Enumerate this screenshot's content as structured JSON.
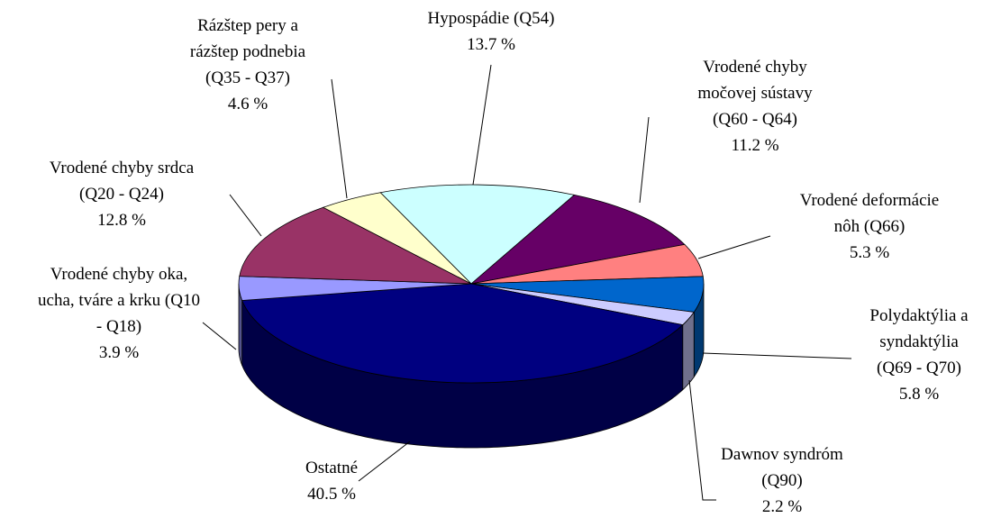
{
  "chart_data": {
    "type": "pie",
    "categories": [
      "Hypospádie (Q54)",
      "Vrodené chyby močovej sústavy (Q60 - Q64)",
      "Vrodené deformácie nôh (Q66)",
      "Polydaktýlia a syndaktýlia (Q69 - Q70)",
      "Dawnov syndróm (Q90)",
      "Ostatné",
      "Vrodené chyby oka, ucha, tváre a krku (Q10 - Q18)",
      "Vrodené chyby srdca (Q20 - Q24)",
      "Rázštep pery a rázštep podnebia (Q35 - Q37)"
    ],
    "values": [
      13.7,
      11.2,
      5.3,
      5.8,
      2.2,
      40.5,
      3.9,
      12.8,
      4.6
    ],
    "value_labels": [
      "13.7 %",
      "11.2 %",
      "5.3 %",
      "5.8 %",
      "2.2 %",
      "40.5 %",
      "3.9 %",
      "12.8 %",
      "4.6 %"
    ],
    "colors": [
      "#ccffff",
      "#660066",
      "#ff8080",
      "#0066cc",
      "#ccccff",
      "#000080",
      "#9999ff",
      "#993366",
      "#ffffcc"
    ]
  }
}
